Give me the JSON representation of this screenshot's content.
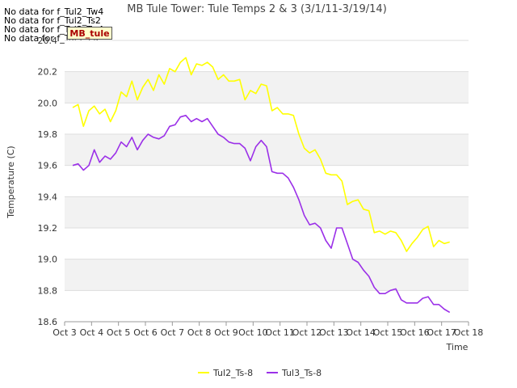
{
  "no_data_messages": [
    "No data for f_Tul2_Tw4",
    "No data for f_Tul2_Ts2",
    "No data for f_Tul3_Tw4",
    "No data for f_Tul3_Ts2"
  ],
  "badge_label": "MB_tule",
  "chart_data": {
    "type": "line",
    "title": "MB Tule Tower: Tule Temps 2 & 3 (3/1/11-3/19/14)",
    "xlabel": "Time",
    "ylabel": "Temperature (C)",
    "xlim": [
      3,
      18
    ],
    "ylim": [
      18.6,
      20.4
    ],
    "x_ticks": [
      3,
      4,
      5,
      6,
      7,
      8,
      9,
      10,
      11,
      12,
      13,
      14,
      15,
      16,
      17,
      18
    ],
    "x_tick_labels": [
      "Oct 3",
      "Oct 4",
      "Oct 5",
      "Oct 6",
      "Oct 7",
      "Oct 8",
      "Oct 9",
      "Oct 10",
      "Oct 11",
      "Oct 12",
      "Oct 13",
      "Oct 14",
      "Oct 15",
      "Oct 16",
      "Oct 17",
      "Oct 18"
    ],
    "y_ticks": [
      18.6,
      18.8,
      19.0,
      19.2,
      19.4,
      19.6,
      19.8,
      20.0,
      20.2,
      20.4
    ],
    "y_tick_labels": [
      "18.6",
      "18.8",
      "19.0",
      "19.2",
      "19.4",
      "19.6",
      "19.8",
      "20.0",
      "20.2",
      "20.4"
    ],
    "grid": true,
    "legend_position": "bottom",
    "series": [
      {
        "name": "Tul2_Ts-8",
        "color": "#ffff00",
        "x": [
          3.3,
          3.5,
          3.7,
          3.9,
          4.1,
          4.3,
          4.5,
          4.7,
          4.9,
          5.1,
          5.3,
          5.5,
          5.7,
          5.9,
          6.1,
          6.3,
          6.5,
          6.7,
          6.9,
          7.1,
          7.3,
          7.5,
          7.7,
          7.9,
          8.1,
          8.3,
          8.5,
          8.7,
          8.9,
          9.1,
          9.3,
          9.5,
          9.7,
          9.9,
          10.1,
          10.3,
          10.5,
          10.7,
          10.9,
          11.1,
          11.3,
          11.5,
          11.7,
          11.9,
          12.1,
          12.3,
          12.5,
          12.7,
          12.9,
          13.1,
          13.3,
          13.5,
          13.7,
          13.9,
          14.1,
          14.3,
          14.5,
          14.7,
          14.9,
          15.1,
          15.3,
          15.5,
          15.7,
          15.9,
          16.1,
          16.3,
          16.5,
          16.7,
          16.9,
          17.1,
          17.3
        ],
        "y": [
          19.97,
          19.99,
          19.85,
          19.95,
          19.98,
          19.93,
          19.96,
          19.88,
          19.95,
          20.07,
          20.04,
          20.14,
          20.02,
          20.1,
          20.15,
          20.08,
          20.18,
          20.12,
          20.22,
          20.2,
          20.26,
          20.29,
          20.18,
          20.25,
          20.24,
          20.26,
          20.23,
          20.15,
          20.18,
          20.14,
          20.14,
          20.15,
          20.02,
          20.08,
          20.06,
          20.12,
          20.11,
          19.95,
          19.97,
          19.93,
          19.93,
          19.92,
          19.8,
          19.71,
          19.68,
          19.7,
          19.64,
          19.55,
          19.54,
          19.54,
          19.5,
          19.35,
          19.37,
          19.38,
          19.32,
          19.31,
          19.17,
          19.18,
          19.16,
          19.18,
          19.17,
          19.12,
          19.05,
          19.1,
          19.14,
          19.19,
          19.21,
          19.08,
          19.12,
          19.1,
          19.11
        ]
      },
      {
        "name": "Tul3_Ts-8",
        "color": "#9b30e8",
        "x": [
          3.3,
          3.5,
          3.7,
          3.9,
          4.1,
          4.3,
          4.5,
          4.7,
          4.9,
          5.1,
          5.3,
          5.5,
          5.7,
          5.9,
          6.1,
          6.3,
          6.5,
          6.7,
          6.9,
          7.1,
          7.3,
          7.5,
          7.7,
          7.9,
          8.1,
          8.3,
          8.5,
          8.7,
          8.9,
          9.1,
          9.3,
          9.5,
          9.7,
          9.9,
          10.1,
          10.3,
          10.5,
          10.7,
          10.9,
          11.1,
          11.3,
          11.5,
          11.7,
          11.9,
          12.1,
          12.3,
          12.5,
          12.7,
          12.9,
          13.1,
          13.3,
          13.5,
          13.7,
          13.9,
          14.1,
          14.3,
          14.5,
          14.7,
          14.9,
          15.1,
          15.3,
          15.5,
          15.7,
          15.9,
          16.1,
          16.3,
          16.5,
          16.7,
          16.9,
          17.1,
          17.3
        ],
        "y": [
          19.6,
          19.61,
          19.57,
          19.6,
          19.7,
          19.62,
          19.66,
          19.64,
          19.68,
          19.75,
          19.72,
          19.78,
          19.7,
          19.76,
          19.8,
          19.78,
          19.77,
          19.79,
          19.85,
          19.86,
          19.91,
          19.92,
          19.88,
          19.9,
          19.88,
          19.9,
          19.85,
          19.8,
          19.78,
          19.75,
          19.74,
          19.74,
          19.71,
          19.63,
          19.72,
          19.76,
          19.72,
          19.56,
          19.55,
          19.55,
          19.52,
          19.46,
          19.38,
          19.28,
          19.22,
          19.23,
          19.2,
          19.12,
          19.07,
          19.2,
          19.2,
          19.1,
          19.0,
          18.98,
          18.93,
          18.89,
          18.82,
          18.78,
          18.78,
          18.8,
          18.81,
          18.74,
          18.72,
          18.72,
          18.72,
          18.75,
          18.76,
          18.71,
          18.71,
          18.68,
          18.66
        ]
      }
    ]
  }
}
